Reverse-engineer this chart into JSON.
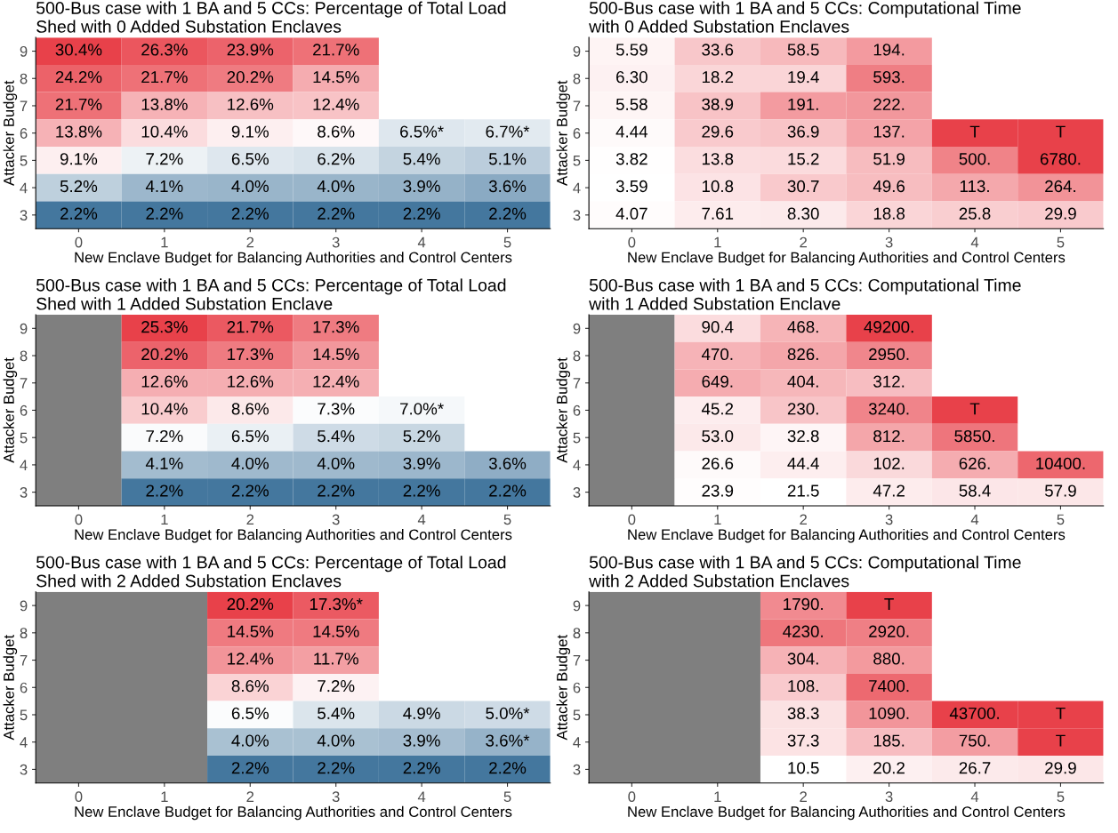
{
  "chart_data": [
    {
      "type": "heatmap",
      "title": "500-Bus case with 1 BA and 5 CCs: Percentage of Total Load\nShed with 0 Added Substation Enclaves",
      "xlabel": "New Enclave Budget for Balancing Authorities and Control Centers",
      "ylabel": "Attacker Budget",
      "categories": [
        "0",
        "1",
        "2",
        "3",
        "4",
        "5"
      ],
      "y_categories": [
        "9",
        "8",
        "7",
        "6",
        "5",
        "4",
        "3"
      ],
      "colors": [
        "#44779e",
        "#ffffff",
        "#e8414a"
      ],
      "log": true,
      "cells": [
        [
          30.4,
          26.3,
          23.9,
          21.7,
          null,
          null
        ],
        [
          24.2,
          21.7,
          20.2,
          14.5,
          null,
          null
        ],
        [
          21.7,
          13.8,
          12.6,
          12.4,
          null,
          null
        ],
        [
          13.8,
          10.4,
          9.1,
          8.6,
          6.5,
          6.7
        ],
        [
          9.1,
          7.2,
          6.5,
          6.2,
          5.4,
          5.1
        ],
        [
          5.2,
          4.1,
          4.0,
          4.0,
          3.9,
          3.6
        ],
        [
          2.2,
          2.2,
          2.2,
          2.2,
          2.2,
          2.2
        ]
      ],
      "cell_labels": [
        [
          "30.4%",
          "26.3%",
          "23.9%",
          "21.7%",
          null,
          null
        ],
        [
          "24.2%",
          "21.7%",
          "20.2%",
          "14.5%",
          null,
          null
        ],
        [
          "21.7%",
          "13.8%",
          "12.6%",
          "12.4%",
          null,
          null
        ],
        [
          "13.8%",
          "10.4%",
          "9.1%",
          "8.6%",
          "6.5%*",
          "6.7%*"
        ],
        [
          "9.1%",
          "7.2%",
          "6.5%",
          "6.2%",
          "5.4%",
          "5.1%"
        ],
        [
          "5.2%",
          "4.1%",
          "4.0%",
          "4.0%",
          "3.9%",
          "3.6%"
        ],
        [
          "2.2%",
          "2.2%",
          "2.2%",
          "2.2%",
          "2.2%",
          "2.2%"
        ]
      ]
    },
    {
      "type": "heatmap",
      "title": "500-Bus case with 1 BA and 5 CCs: Computational Time\nwith 0 Added Substation Enclaves",
      "xlabel": "New Enclave Budget for Balancing Authorities and Control Centers",
      "ylabel": "Attacker Budget",
      "categories": [
        "0",
        "1",
        "2",
        "3",
        "4",
        "5"
      ],
      "y_categories": [
        "9",
        "8",
        "7",
        "6",
        "5",
        "4",
        "3"
      ],
      "colors": [
        "#ffffff",
        "#e8414a"
      ],
      "log": true,
      "cells": [
        [
          5.59,
          33.6,
          58.5,
          194,
          null,
          null
        ],
        [
          6.3,
          18.2,
          19.4,
          593,
          null,
          null
        ],
        [
          5.58,
          38.9,
          191,
          222,
          null,
          null
        ],
        [
          4.44,
          29.6,
          36.9,
          137,
          null,
          null
        ],
        [
          3.82,
          13.8,
          15.2,
          51.9,
          500,
          6780
        ],
        [
          3.59,
          10.8,
          30.7,
          49.6,
          113,
          264
        ],
        [
          4.07,
          7.61,
          8.3,
          18.8,
          25.8,
          29.9
        ]
      ],
      "cell_labels": [
        [
          "5.59",
          "33.6",
          "58.5",
          "194.",
          null,
          null
        ],
        [
          "6.30",
          "18.2",
          "19.4",
          "593.",
          null,
          null
        ],
        [
          "5.58",
          "38.9",
          "191.",
          "222.",
          null,
          null
        ],
        [
          "4.44",
          "29.6",
          "36.9",
          "137.",
          "T",
          "T"
        ],
        [
          "3.82",
          "13.8",
          "15.2",
          "51.9",
          "500.",
          "6780."
        ],
        [
          "3.59",
          "10.8",
          "30.7",
          "49.6",
          "113.",
          "264."
        ],
        [
          "4.07",
          "7.61",
          "8.30",
          "18.8",
          "25.8",
          "29.9"
        ]
      ]
    },
    {
      "type": "heatmap",
      "title": "500-Bus case with 1 BA and 5 CCs: Percentage of Total Load\nShed with 1 Added Substation Enclave",
      "xlabel": "New Enclave Budget for Balancing Authorities and Control Centers",
      "ylabel": "Attacker Budget",
      "categories": [
        "0",
        "1",
        "2",
        "3",
        "4",
        "5"
      ],
      "y_categories": [
        "9",
        "8",
        "7",
        "6",
        "5",
        "4",
        "3"
      ],
      "colors": [
        "#44779e",
        "#ffffff",
        "#e8414a"
      ],
      "log": true,
      "cells": [
        [
          null,
          25.3,
          21.7,
          17.3,
          null,
          null
        ],
        [
          null,
          20.2,
          17.3,
          14.5,
          null,
          null
        ],
        [
          null,
          12.6,
          12.6,
          12.4,
          null,
          null
        ],
        [
          null,
          10.4,
          8.6,
          7.3,
          7.0,
          null
        ],
        [
          null,
          7.2,
          6.5,
          5.4,
          5.2,
          null
        ],
        [
          null,
          4.1,
          4.0,
          4.0,
          3.9,
          3.6
        ],
        [
          null,
          2.2,
          2.2,
          2.2,
          2.2,
          2.2
        ]
      ],
      "bands": [
        {
          "axis": "x",
          "from": "0",
          "to": "0",
          "color": "#7f7f7f"
        }
      ],
      "cell_labels": [
        [
          null,
          "25.3%",
          "21.7%",
          "17.3%",
          null,
          null
        ],
        [
          null,
          "20.2%",
          "17.3%",
          "14.5%",
          null,
          null
        ],
        [
          null,
          "12.6%",
          "12.6%",
          "12.4%",
          null,
          null
        ],
        [
          null,
          "10.4%",
          "8.6%",
          "7.3%",
          "7.0%*",
          null
        ],
        [
          null,
          "7.2%",
          "6.5%",
          "5.4%",
          "5.2%",
          null
        ],
        [
          null,
          "4.1%",
          "4.0%",
          "4.0%",
          "3.9%",
          "3.6%"
        ],
        [
          null,
          "2.2%",
          "2.2%",
          "2.2%",
          "2.2%",
          "2.2%"
        ]
      ]
    },
    {
      "type": "heatmap",
      "title": "500-Bus case with 1 BA and 5 CCs: Computational Time\nwith 1 Added Substation Enclave",
      "xlabel": "New Enclave Budget for Balancing Authorities and Control Centers",
      "ylabel": "Attacker Budget",
      "categories": [
        "0",
        "1",
        "2",
        "3",
        "4",
        "5"
      ],
      "y_categories": [
        "9",
        "8",
        "7",
        "6",
        "5",
        "4",
        "3"
      ],
      "colors": [
        "#ffffff",
        "#e8414a"
      ],
      "log": true,
      "cells": [
        [
          null,
          90.4,
          468,
          49200,
          null,
          null
        ],
        [
          null,
          470,
          826,
          2950,
          null,
          null
        ],
        [
          null,
          649,
          404,
          312,
          null,
          null
        ],
        [
          null,
          45.2,
          230,
          3240,
          null,
          null
        ],
        [
          null,
          53.0,
          32.8,
          812,
          5850,
          null
        ],
        [
          null,
          26.6,
          44.4,
          102,
          626,
          10400
        ],
        [
          null,
          23.9,
          21.5,
          47.2,
          58.4,
          57.9
        ]
      ],
      "bands": [
        {
          "axis": "x",
          "from": "0",
          "to": "0",
          "color": "#7f7f7f"
        }
      ],
      "cell_labels": [
        [
          null,
          "90.4",
          "468.",
          "49200.",
          null,
          null
        ],
        [
          null,
          "470.",
          "826.",
          "2950.",
          null,
          null
        ],
        [
          null,
          "649.",
          "404.",
          "312.",
          null,
          null
        ],
        [
          null,
          "45.2",
          "230.",
          "3240.",
          "T",
          null
        ],
        [
          null,
          "53.0",
          "32.8",
          "812.",
          "5850.",
          null
        ],
        [
          null,
          "26.6",
          "44.4",
          "102.",
          "626.",
          "10400."
        ],
        [
          null,
          "23.9",
          "21.5",
          "47.2",
          "58.4",
          "57.9"
        ]
      ]
    },
    {
      "type": "heatmap",
      "title": "500-Bus case with 1 BA and 5 CCs: Percentage of Total Load\nShed with 2 Added Substation Enclaves",
      "xlabel": "New Enclave Budget for Balancing Authorities and Control Centers",
      "ylabel": "Attacker Budget",
      "categories": [
        "0",
        "1",
        "2",
        "3",
        "4",
        "5"
      ],
      "y_categories": [
        "9",
        "8",
        "7",
        "6",
        "5",
        "4",
        "3"
      ],
      "colors": [
        "#44779e",
        "#ffffff",
        "#e8414a"
      ],
      "log": true,
      "cells": [
        [
          null,
          null,
          20.2,
          17.3,
          null,
          null
        ],
        [
          null,
          null,
          14.5,
          14.5,
          null,
          null
        ],
        [
          null,
          null,
          12.4,
          11.7,
          null,
          null
        ],
        [
          null,
          null,
          8.6,
          7.2,
          null,
          null
        ],
        [
          null,
          null,
          6.5,
          5.4,
          4.9,
          5.0
        ],
        [
          null,
          null,
          4.0,
          4.0,
          3.9,
          3.6
        ],
        [
          null,
          null,
          2.2,
          2.2,
          2.2,
          2.2
        ]
      ],
      "bands": [
        {
          "axis": "x",
          "from": "0",
          "to": "1",
          "color": "#7f7f7f"
        }
      ],
      "cell_labels": [
        [
          null,
          null,
          "20.2%",
          "17.3%*",
          null,
          null
        ],
        [
          null,
          null,
          "14.5%",
          "14.5%",
          null,
          null
        ],
        [
          null,
          null,
          "12.4%",
          "11.7%",
          null,
          null
        ],
        [
          null,
          null,
          "8.6%",
          "7.2%",
          null,
          null
        ],
        [
          null,
          null,
          "6.5%",
          "5.4%",
          "4.9%",
          "5.0%*"
        ],
        [
          null,
          null,
          "4.0%",
          "4.0%",
          "3.9%",
          "3.6%*"
        ],
        [
          null,
          null,
          "2.2%",
          "2.2%",
          "2.2%",
          "2.2%"
        ]
      ]
    },
    {
      "type": "heatmap",
      "title": "500-Bus case with 1 BA and 5 CCs: Computational Time\nwith 2 Added Substation Enclaves",
      "xlabel": "New Enclave Budget for Balancing Authorities and Control Centers",
      "ylabel": "Attacker Budget",
      "categories": [
        "0",
        "1",
        "2",
        "3",
        "4",
        "5"
      ],
      "y_categories": [
        "9",
        "8",
        "7",
        "6",
        "5",
        "4",
        "3"
      ],
      "colors": [
        "#ffffff",
        "#e8414a"
      ],
      "log": true,
      "cells": [
        [
          null,
          null,
          1790,
          null,
          null,
          null
        ],
        [
          null,
          null,
          4230,
          2920,
          null,
          null
        ],
        [
          null,
          null,
          304,
          880,
          null,
          null
        ],
        [
          null,
          null,
          108,
          7400,
          null,
          null
        ],
        [
          null,
          null,
          38.3,
          1090,
          43700,
          null
        ],
        [
          null,
          null,
          37.3,
          185,
          750,
          null
        ],
        [
          null,
          null,
          10.5,
          20.2,
          26.7,
          29.9
        ]
      ],
      "bands": [
        {
          "axis": "x",
          "from": "0",
          "to": "1",
          "color": "#7f7f7f"
        }
      ],
      "cell_labels": [
        [
          null,
          null,
          "1790.",
          "T",
          null,
          null
        ],
        [
          null,
          null,
          "4230.",
          "2920.",
          null,
          null
        ],
        [
          null,
          null,
          "304.",
          "880.",
          null,
          null
        ],
        [
          null,
          null,
          "108.",
          "7400.",
          null,
          null
        ],
        [
          null,
          null,
          "38.3",
          "1090.",
          "43700.",
          "T"
        ],
        [
          null,
          null,
          "37.3",
          "185.",
          "750.",
          "T"
        ],
        [
          null,
          null,
          "10.5",
          "20.2",
          "26.7",
          "29.9"
        ]
      ]
    }
  ]
}
